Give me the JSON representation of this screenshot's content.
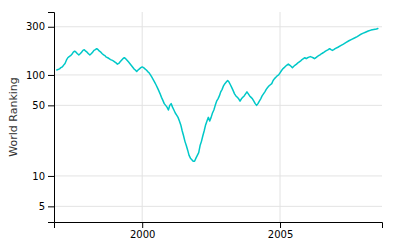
{
  "chart_data": {
    "type": "line",
    "y_label": "World Ranking",
    "color": "#00c8c8",
    "log": "y",
    "grid": true,
    "xlim": [
      1996.8,
      2008.7
    ],
    "xticks": [
      2000,
      2005
    ],
    "ylim": [
      3.5,
      420
    ],
    "yticks": [
      5,
      10,
      50,
      100,
      300
    ],
    "x": [
      1996.9,
      1997.0,
      1997.05,
      1997.1,
      1997.15,
      1997.2,
      1997.25,
      1997.3,
      1997.35,
      1997.4,
      1997.45,
      1997.5,
      1997.55,
      1997.6,
      1997.65,
      1997.7,
      1997.75,
      1997.8,
      1997.85,
      1997.9,
      1997.95,
      1998.0,
      1998.05,
      1998.1,
      1998.15,
      1998.2,
      1998.25,
      1998.3,
      1998.35,
      1998.4,
      1998.45,
      1998.5,
      1998.55,
      1998.6,
      1998.65,
      1998.7,
      1998.75,
      1998.8,
      1998.85,
      1998.9,
      1998.95,
      1999.0,
      1999.05,
      1999.1,
      1999.15,
      1999.2,
      1999.25,
      1999.3,
      1999.35,
      1999.4,
      1999.45,
      1999.5,
      1999.55,
      1999.6,
      1999.65,
      1999.7,
      1999.75,
      1999.8,
      1999.85,
      1999.9,
      1999.95,
      2000.0,
      2000.05,
      2000.1,
      2000.15,
      2000.2,
      2000.25,
      2000.3,
      2000.35,
      2000.4,
      2000.45,
      2000.5,
      2000.55,
      2000.6,
      2000.65,
      2000.7,
      2000.75,
      2000.8,
      2000.85,
      2000.9,
      2000.95,
      2001.0,
      2001.05,
      2001.1,
      2001.15,
      2001.2,
      2001.25,
      2001.3,
      2001.35,
      2001.4,
      2001.45,
      2001.5,
      2001.55,
      2001.6,
      2001.65,
      2001.7,
      2001.75,
      2001.8,
      2001.85,
      2001.9,
      2001.95,
      2002.0,
      2002.05,
      2002.1,
      2002.15,
      2002.2,
      2002.25,
      2002.3,
      2002.35,
      2002.4,
      2002.45,
      2002.5,
      2002.55,
      2002.6,
      2002.65,
      2002.7,
      2002.75,
      2002.8,
      2002.85,
      2002.9,
      2002.95,
      2003.0,
      2003.05,
      2003.1,
      2003.15,
      2003.2,
      2003.25,
      2003.3,
      2003.35,
      2003.4,
      2003.45,
      2003.5,
      2003.55,
      2003.6,
      2003.65,
      2003.7,
      2003.75,
      2003.8,
      2003.85,
      2003.9,
      2003.95,
      2004.0,
      2004.05,
      2004.1,
      2004.15,
      2004.2,
      2004.25,
      2004.3,
      2004.35,
      2004.4,
      2004.45,
      2004.5,
      2004.55,
      2004.6,
      2004.65,
      2004.7,
      2004.75,
      2004.8,
      2004.85,
      2004.9,
      2004.95,
      2005.0,
      2005.05,
      2005.1,
      2005.15,
      2005.2,
      2005.25,
      2005.3,
      2005.35,
      2005.4,
      2005.45,
      2005.5,
      2005.55,
      2005.6,
      2005.65,
      2005.7,
      2005.75,
      2005.8,
      2005.85,
      2005.9,
      2005.95,
      2006.0,
      2006.05,
      2006.1,
      2006.15,
      2006.2,
      2006.25,
      2006.3,
      2006.35,
      2006.4,
      2006.45,
      2006.5,
      2006.55,
      2006.6,
      2006.65,
      2006.7,
      2006.75,
      2006.8,
      2006.85,
      2006.9,
      2006.95,
      2007.0,
      2007.1,
      2007.2,
      2007.3,
      2007.4,
      2007.5,
      2007.6,
      2007.7,
      2007.8,
      2007.9,
      2008.0,
      2008.1,
      2008.2,
      2008.3,
      2008.4,
      2008.5,
      2008.55
    ],
    "values": [
      112,
      115,
      118,
      120,
      125,
      130,
      140,
      148,
      152,
      155,
      160,
      168,
      172,
      168,
      162,
      158,
      162,
      168,
      175,
      178,
      172,
      168,
      162,
      158,
      162,
      168,
      175,
      178,
      182,
      178,
      172,
      168,
      162,
      158,
      155,
      150,
      148,
      145,
      142,
      140,
      138,
      135,
      132,
      128,
      130,
      135,
      140,
      145,
      148,
      145,
      140,
      135,
      130,
      125,
      120,
      115,
      112,
      108,
      112,
      115,
      118,
      120,
      118,
      115,
      112,
      108,
      105,
      100,
      95,
      90,
      85,
      80,
      75,
      70,
      65,
      60,
      56,
      52,
      50,
      48,
      45,
      50,
      52,
      48,
      45,
      42,
      40,
      38,
      35,
      32,
      28,
      25,
      22,
      20,
      18,
      16,
      15,
      14.5,
      14,
      14,
      15,
      16,
      17,
      20,
      22,
      25,
      28,
      32,
      35,
      38,
      35,
      38,
      42,
      45,
      50,
      55,
      58,
      62,
      68,
      72,
      78,
      82,
      85,
      88,
      85,
      80,
      75,
      70,
      65,
      62,
      60,
      58,
      55,
      58,
      60,
      62,
      65,
      68,
      65,
      62,
      60,
      58,
      55,
      52,
      50,
      52,
      55,
      58,
      62,
      65,
      68,
      72,
      75,
      78,
      80,
      82,
      88,
      92,
      95,
      98,
      100,
      105,
      110,
      115,
      118,
      122,
      125,
      128,
      125,
      122,
      118,
      122,
      125,
      128,
      132,
      135,
      138,
      142,
      145,
      148,
      145,
      148,
      150,
      152,
      150,
      148,
      145,
      148,
      152,
      155,
      158,
      162,
      165,
      168,
      172,
      175,
      178,
      182,
      178,
      175,
      178,
      182,
      188,
      195,
      202,
      210,
      218,
      225,
      232,
      240,
      250,
      258,
      265,
      272,
      278,
      282,
      285,
      288
    ]
  }
}
